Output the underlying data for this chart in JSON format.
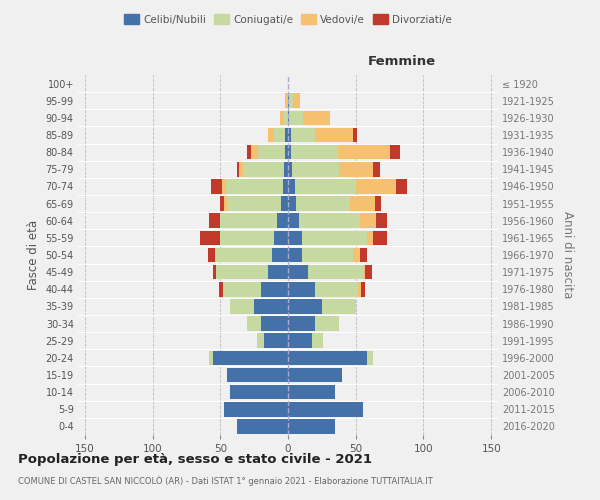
{
  "age_groups": [
    "0-4",
    "5-9",
    "10-14",
    "15-19",
    "20-24",
    "25-29",
    "30-34",
    "35-39",
    "40-44",
    "45-49",
    "50-54",
    "55-59",
    "60-64",
    "65-69",
    "70-74",
    "75-79",
    "80-84",
    "85-89",
    "90-94",
    "95-99",
    "100+"
  ],
  "birth_years": [
    "2016-2020",
    "2011-2015",
    "2006-2010",
    "2001-2005",
    "1996-2000",
    "1991-1995",
    "1986-1990",
    "1981-1985",
    "1976-1980",
    "1971-1975",
    "1966-1970",
    "1961-1965",
    "1956-1960",
    "1951-1955",
    "1946-1950",
    "1941-1945",
    "1936-1940",
    "1931-1935",
    "1926-1930",
    "1921-1925",
    "≤ 1920"
  ],
  "male": {
    "celibi": [
      38,
      47,
      43,
      45,
      55,
      18,
      20,
      25,
      20,
      15,
      12,
      10,
      8,
      5,
      4,
      3,
      2,
      2,
      0,
      0,
      0
    ],
    "coniugati": [
      0,
      0,
      0,
      0,
      3,
      5,
      10,
      18,
      28,
      38,
      42,
      40,
      42,
      40,
      42,
      30,
      20,
      8,
      3,
      1,
      0
    ],
    "vedovi": [
      0,
      0,
      0,
      0,
      0,
      0,
      0,
      0,
      0,
      0,
      0,
      0,
      0,
      2,
      3,
      3,
      5,
      5,
      3,
      1,
      0
    ],
    "divorziati": [
      0,
      0,
      0,
      0,
      0,
      0,
      0,
      0,
      3,
      2,
      5,
      15,
      8,
      3,
      8,
      2,
      3,
      0,
      0,
      0,
      0
    ]
  },
  "female": {
    "nubili": [
      35,
      55,
      35,
      40,
      58,
      18,
      20,
      25,
      20,
      15,
      10,
      10,
      8,
      6,
      5,
      3,
      2,
      2,
      1,
      1,
      0
    ],
    "coniugate": [
      0,
      0,
      0,
      0,
      5,
      8,
      18,
      25,
      32,
      40,
      38,
      48,
      45,
      40,
      45,
      35,
      35,
      18,
      10,
      3,
      0
    ],
    "vedove": [
      0,
      0,
      0,
      0,
      0,
      0,
      0,
      0,
      2,
      2,
      5,
      5,
      12,
      18,
      30,
      25,
      38,
      28,
      20,
      5,
      0
    ],
    "divorziate": [
      0,
      0,
      0,
      0,
      0,
      0,
      0,
      0,
      3,
      5,
      5,
      10,
      8,
      5,
      8,
      5,
      8,
      3,
      0,
      0,
      0
    ]
  },
  "colors": {
    "celibi": "#4472a8",
    "coniugati": "#c5d9a0",
    "vedovi": "#f5c070",
    "divorziati": "#c0392b"
  },
  "xlim": 155,
  "title": "Popolazione per età, sesso e stato civile - 2021",
  "subtitle": "COMUNE DI CASTEL SAN NICCOLÒ (AR) - Dati ISTAT 1° gennaio 2021 - Elaborazione TUTTAITALIA.IT",
  "ylabel_left": "Fasce di età",
  "ylabel_right": "Anni di nascita",
  "background_color": "#f0f0f0"
}
